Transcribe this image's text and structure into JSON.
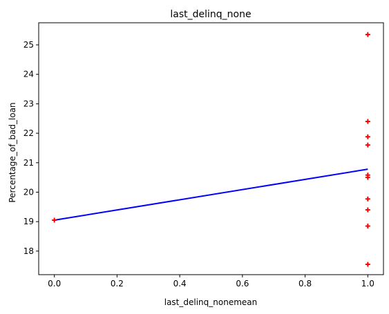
{
  "chart_data": {
    "type": "scatter",
    "title": "last_delinq_none",
    "xlabel": "last_delinq_nonemean",
    "ylabel": "Percentage_of_bad_loan",
    "xlim": [
      -0.05,
      1.05
    ],
    "ylim": [
      17.2,
      25.75
    ],
    "x_ticks": [
      0.0,
      0.2,
      0.4,
      0.6,
      0.8,
      1.0
    ],
    "x_tick_labels": [
      "0.0",
      "0.2",
      "0.4",
      "0.6",
      "0.8",
      "1.0"
    ],
    "y_ticks": [
      18,
      19,
      20,
      21,
      22,
      23,
      24,
      25
    ],
    "y_tick_labels": [
      "18",
      "19",
      "20",
      "21",
      "22",
      "23",
      "24",
      "25"
    ],
    "grid": false,
    "series": [
      {
        "kind": "scatter",
        "marker": "plus",
        "color": "#ff0000",
        "points": [
          {
            "x": 0.0,
            "y": 19.05
          },
          {
            "x": 1.0,
            "y": 25.35
          },
          {
            "x": 1.0,
            "y": 22.4
          },
          {
            "x": 1.0,
            "y": 21.88
          },
          {
            "x": 1.0,
            "y": 21.6
          },
          {
            "x": 1.0,
            "y": 20.58
          },
          {
            "x": 1.0,
            "y": 20.5
          },
          {
            "x": 1.0,
            "y": 19.77
          },
          {
            "x": 1.0,
            "y": 19.4
          },
          {
            "x": 1.0,
            "y": 18.85
          },
          {
            "x": 1.0,
            "y": 17.55
          }
        ]
      },
      {
        "kind": "line",
        "color": "#0000ff",
        "points": [
          {
            "x": 0.0,
            "y": 19.05
          },
          {
            "x": 1.0,
            "y": 20.78
          }
        ]
      }
    ]
  }
}
